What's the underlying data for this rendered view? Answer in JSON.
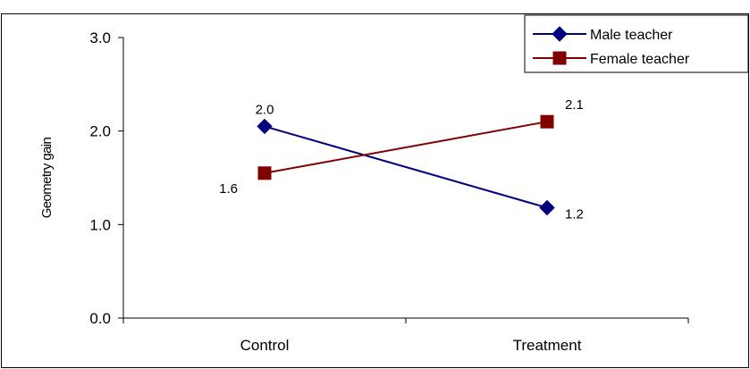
{
  "chart_data": {
    "type": "line",
    "title": "",
    "xlabel": "",
    "ylabel": "Geometry gain",
    "categories": [
      "Control",
      "Treatment"
    ],
    "ylim": [
      0,
      3
    ],
    "yticks": [
      "0.0",
      "1.0",
      "2.0",
      "3.0"
    ],
    "grid": false,
    "legend_position": "top-right",
    "series": [
      {
        "name": "Male teacher",
        "values": [
          2.05,
          1.18
        ],
        "labels": [
          "2.0",
          "1.2"
        ],
        "color": "#00007f",
        "marker": "diamond"
      },
      {
        "name": "Female teacher",
        "values": [
          1.55,
          2.1
        ],
        "labels": [
          "1.6",
          "2.1"
        ],
        "color": "#800000",
        "marker": "square"
      }
    ]
  }
}
